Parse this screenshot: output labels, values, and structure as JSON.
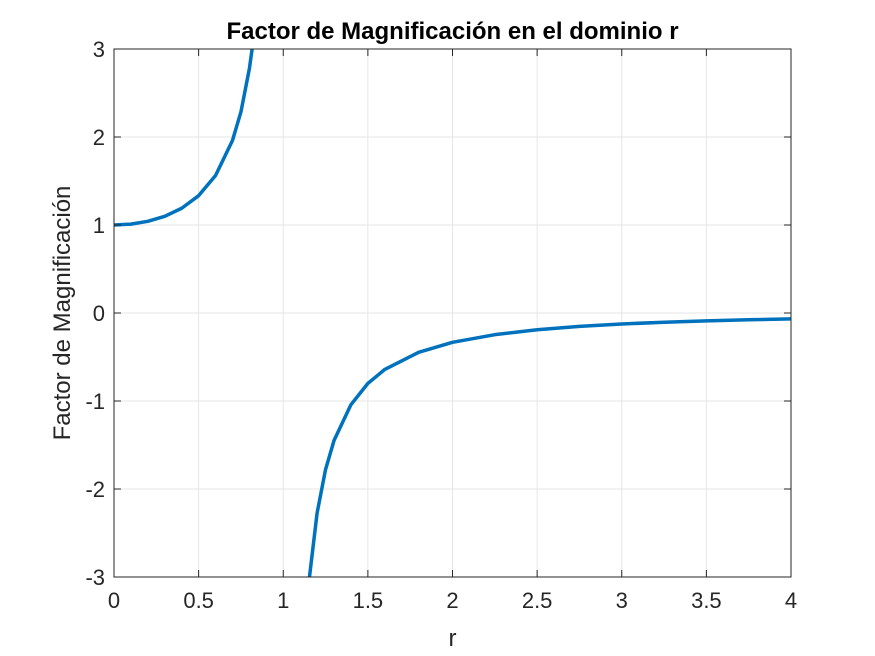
{
  "chart_data": {
    "type": "line",
    "title": "Factor de Magnificación en el dominio r",
    "xlabel": "r",
    "ylabel": "Factor de Magnificación",
    "xlim": [
      0,
      4
    ],
    "ylim": [
      -3,
      3
    ],
    "xticks": [
      "0",
      "0.5",
      "1",
      "1.5",
      "2",
      "2.5",
      "3",
      "3.5",
      "4"
    ],
    "yticks": [
      "-3",
      "-2",
      "-1",
      "0",
      "1",
      "2",
      "3"
    ],
    "grid": true,
    "line_color": "#0072BD",
    "series": [
      {
        "x": [
          0,
          0.1,
          0.2,
          0.3,
          0.4,
          0.5,
          0.6,
          0.7,
          0.75,
          0.8,
          0.816
        ],
        "y": [
          1.0,
          1.0101,
          1.0417,
          1.0989,
          1.1905,
          1.3333,
          1.5625,
          1.9608,
          2.2857,
          2.7778,
          3.0
        ]
      },
      {
        "x": [
          1.155,
          1.2,
          1.25,
          1.3,
          1.4,
          1.5,
          1.6,
          1.8,
          2.0,
          2.25,
          2.5,
          2.75,
          3.0,
          3.25,
          3.5,
          3.75,
          4.0
        ],
        "y": [
          -3.0,
          -2.2727,
          -1.7778,
          -1.4493,
          -1.0417,
          -0.8,
          -0.641,
          -0.4464,
          -0.3333,
          -0.2462,
          -0.1905,
          -0.152,
          -0.125,
          -0.1046,
          -0.0889,
          -0.0766,
          -0.0667
        ]
      }
    ]
  }
}
